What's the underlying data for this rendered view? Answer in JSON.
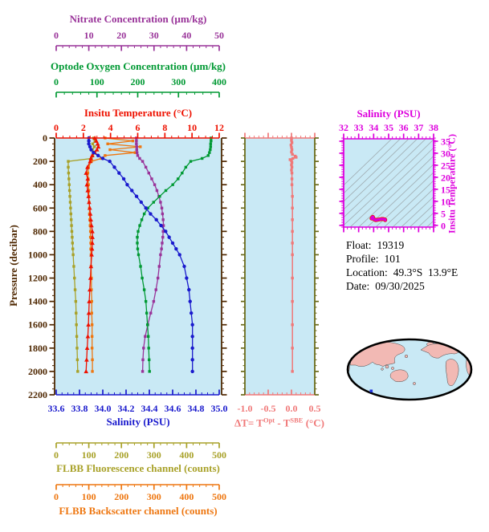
{
  "page": {
    "background": "#ffffff",
    "plot_bg": "#c9e9f5"
  },
  "info_panel": {
    "rows": [
      {
        "label": "Float:",
        "value": "19319"
      },
      {
        "label": "Profile:",
        "value": "101"
      },
      {
        "label": "Location:",
        "value": "49.3°S  13.9°E"
      },
      {
        "label": "Date:",
        "value": "09/30/2025"
      }
    ]
  },
  "axes": {
    "nitrate": {
      "title": "Nitrate Concentration (µm/kg)",
      "color": "#993399",
      "min": 0,
      "max": 50,
      "major_ticks": [
        "0",
        "10",
        "20",
        "30",
        "40",
        "50"
      ],
      "minor_step": 2
    },
    "oxygen": {
      "title": "Optode Oxygen Concentration (µm/kg)",
      "color": "#009933",
      "min": 0,
      "max": 400,
      "major_ticks": [
        "0",
        "100",
        "200",
        "300",
        "400"
      ],
      "minor_step": 20
    },
    "temperature": {
      "title": "Insitu Temperature (°C)",
      "color": "#ee1100",
      "min": 0,
      "max": 12,
      "major_ticks": [
        "0",
        "2",
        "4",
        "6",
        "8",
        "10",
        "12"
      ],
      "minor_step": 0.5
    },
    "pressure": {
      "title": "Pressure (decibar)",
      "color": "#4f2802",
      "min": 0,
      "max": 2200,
      "major_ticks": [
        "0",
        "200",
        "400",
        "600",
        "800",
        "1000",
        "1200",
        "1400",
        "1600",
        "1800",
        "2000",
        "2200"
      ],
      "minor_step": 50
    },
    "salinity": {
      "title": "Salinity (PSU)",
      "color": "#1a1acd",
      "min": 33.6,
      "max": 35.0,
      "major_ticks": [
        "33.6",
        "33.8",
        "34.0",
        "34.2",
        "34.4",
        "34.6",
        "34.8",
        "35.0"
      ],
      "minor_step": 0.05
    },
    "fluorescence": {
      "title": "FLBB Fluorescence channel (counts)",
      "color": "#a8a128",
      "min": 0,
      "max": 500,
      "major_ticks": [
        "0",
        "100",
        "200",
        "300",
        "400",
        "500"
      ],
      "minor_step": 20
    },
    "backscatter": {
      "title": "FLBB Backscatter channel (counts)",
      "color": "#ee7711",
      "min": 0,
      "max": 500,
      "major_ticks": [
        "0",
        "100",
        "200",
        "300",
        "400",
        "500"
      ],
      "minor_step": 20
    },
    "delta_t": {
      "title_parts": {
        "prefix": "ΔT= T",
        "sup1": "Opt",
        "mid": " - T",
        "sup2": "SBE",
        "suffix": " (°C)"
      },
      "color": "#f07878",
      "frame_color": "#6b6b1b",
      "min": -1.0,
      "max": 0.5,
      "major_ticks": [
        "-1.0",
        "-0.5",
        "0.0",
        "0.5"
      ],
      "minor_step": 0.1
    },
    "ts_salinity": {
      "title": "Salinity (PSU)",
      "color": "#dd00dd",
      "min": 32,
      "max": 38,
      "major_ticks": [
        "32",
        "33",
        "34",
        "35",
        "36",
        "37",
        "38"
      ],
      "minor_step": 0.25
    },
    "ts_temperature": {
      "title": "Insitu Temperature (°C)",
      "color": "#dd00dd",
      "min": -0.7,
      "max": 36.0,
      "major_ticks": [
        "0",
        "5",
        "10",
        "15",
        "20",
        "25",
        "30",
        "35"
      ],
      "minor_step": 1
    }
  },
  "chart_data": [
    {
      "type": "line",
      "title": "float-profiles-vs-pressure",
      "ylabel": "Pressure (decibar)",
      "ylim": [
        0,
        2200
      ],
      "legend_position": "none",
      "grid": false,
      "categories_note": "pressure in decibar, each series read on its own top/bottom axis",
      "pressure": [
        0,
        25,
        50,
        75,
        100,
        125,
        150,
        175,
        200,
        250,
        300,
        350,
        400,
        450,
        500,
        550,
        600,
        650,
        700,
        750,
        800,
        850,
        900,
        950,
        1000,
        1100,
        1200,
        1300,
        1400,
        1500,
        1600,
        1700,
        1800,
        1900,
        2000
      ],
      "series": [
        {
          "name": "FLBB Fluorescence channel",
          "axis": "fluorescence",
          "units": "counts",
          "marker": "square",
          "values": [
            115,
            119,
            112,
            117,
            111,
            116,
            112,
            108,
            37,
            37,
            38,
            39,
            40,
            41,
            42,
            43,
            44,
            45,
            46,
            47,
            48,
            49,
            50,
            51,
            52,
            54,
            56,
            58,
            60,
            61,
            62,
            63,
            64,
            65,
            66
          ]
        },
        {
          "name": "FLBB Backscatter channel",
          "axis": "backscatter",
          "units": "counts",
          "marker": "square",
          "values": [
            150,
            235,
            158,
            258,
            165,
            242,
            150,
            138,
            108,
            99,
            97,
            98,
            99,
            100,
            100,
            101,
            102,
            102,
            103,
            104,
            105,
            105,
            106,
            106,
            107,
            107,
            108,
            108,
            109,
            109,
            110,
            110,
            110,
            111,
            111
          ]
        },
        {
          "name": "Insitu Temperature",
          "axis": "temperature",
          "units": "°C",
          "marker": "triangle",
          "values": [
            2.85,
            2.95,
            3.05,
            3.1,
            3.0,
            2.85,
            2.65,
            2.55,
            2.5,
            2.3,
            2.2,
            2.32,
            2.26,
            2.32,
            2.38,
            2.42,
            2.47,
            2.51,
            2.55,
            2.6,
            2.66,
            2.67,
            2.66,
            2.64,
            2.61,
            2.56,
            2.52,
            2.47,
            2.43,
            2.4,
            2.37,
            2.33,
            2.28,
            2.24,
            2.2
          ]
        },
        {
          "name": "Nitrate Concentration",
          "axis": "nitrate",
          "units": "µm/kg",
          "marker": "square",
          "values": [
            24.6,
            24.6,
            24.6,
            24.7,
            24.7,
            24.8,
            25.0,
            25.6,
            26.5,
            27.5,
            28.4,
            29.3,
            30.2,
            30.9,
            31.5,
            32.0,
            32.4,
            32.6,
            32.8,
            32.9,
            32.8,
            32.7,
            32.5,
            32.3,
            32.0,
            31.6,
            31.2,
            30.6,
            29.9,
            29.0,
            28.1,
            27.3,
            26.8,
            26.6,
            26.5
          ]
        },
        {
          "name": "Optode Oxygen Concentration",
          "axis": "oxygen",
          "units": "µm/kg",
          "marker": "square",
          "values": [
            380,
            380,
            379,
            379,
            378,
            376,
            373,
            358,
            330,
            318,
            309,
            299,
            286,
            269,
            254,
            239,
            225,
            216,
            210,
            205,
            201,
            199,
            199,
            200,
            202,
            207,
            211,
            216,
            220,
            222,
            224,
            226,
            227,
            228,
            229
          ]
        },
        {
          "name": "Salinity",
          "axis": "salinity",
          "units": "PSU",
          "marker": "circle",
          "values": [
            33.88,
            33.88,
            33.88,
            33.89,
            33.9,
            33.92,
            33.96,
            34.0,
            34.06,
            34.1,
            34.14,
            34.18,
            34.21,
            34.25,
            34.29,
            34.33,
            34.37,
            34.41,
            34.46,
            34.5,
            34.54,
            34.57,
            34.6,
            34.63,
            34.66,
            34.7,
            34.72,
            34.74,
            34.75,
            34.76,
            34.77,
            34.77,
            34.77,
            34.77,
            34.77
          ]
        }
      ]
    },
    {
      "type": "line",
      "title": "optode-minus-sbe-temperature-difference",
      "xlabel": "ΔT= TOpt - TSBE (°C)",
      "xlim": [
        -1.0,
        0.5
      ],
      "ylim": [
        0,
        2200
      ],
      "series": [
        {
          "name": "ΔT",
          "axis": "delta_t",
          "units": "°C",
          "marker": "square",
          "pressure": [
            0,
            20,
            40,
            60,
            80,
            100,
            120,
            140,
            155,
            165,
            175,
            185,
            195,
            210,
            230,
            250,
            275,
            300,
            350,
            400,
            500,
            600,
            700,
            800,
            900,
            1000,
            1200,
            1400,
            1600,
            1800,
            2000
          ],
          "values": [
            0.0,
            0.0,
            0.01,
            -0.01,
            0.0,
            0.01,
            0.0,
            0.02,
            0.08,
            0.1,
            0.03,
            -0.03,
            0.0,
            0.01,
            0.0,
            0.01,
            0.0,
            0.01,
            0.01,
            0.01,
            0.02,
            0.02,
            0.02,
            0.02,
            0.02,
            0.02,
            0.02,
            0.02,
            0.02,
            0.02,
            0.02
          ]
        }
      ]
    },
    {
      "type": "scatter",
      "title": "ts-diagram",
      "xlabel": "Salinity (PSU)",
      "ylabel": "Insitu Temperature (°C)",
      "xlim": [
        32,
        38
      ],
      "ylim": [
        0,
        35
      ],
      "contours": {
        "kind": "isopycnal",
        "count": 20,
        "color": "#9fabb0"
      },
      "points_salinity_temperature": [
        [
          33.86,
          2.85
        ],
        [
          33.88,
          2.95
        ],
        [
          33.9,
          3.05
        ],
        [
          33.92,
          3.1
        ],
        [
          33.9,
          3.3
        ],
        [
          33.94,
          3.55
        ],
        [
          33.96,
          3.4
        ],
        [
          33.96,
          2.9
        ],
        [
          34.0,
          2.6
        ],
        [
          34.06,
          2.5
        ],
        [
          34.1,
          2.3
        ],
        [
          34.14,
          2.2
        ],
        [
          34.18,
          2.32
        ],
        [
          34.21,
          2.26
        ],
        [
          34.29,
          2.38
        ],
        [
          34.37,
          2.47
        ],
        [
          34.46,
          2.55
        ],
        [
          34.54,
          2.66
        ],
        [
          34.6,
          2.66
        ],
        [
          34.66,
          2.61
        ],
        [
          34.72,
          2.52
        ],
        [
          34.75,
          2.43
        ],
        [
          34.77,
          2.37
        ],
        [
          34.77,
          2.28
        ],
        [
          34.77,
          2.2
        ]
      ],
      "point_color": "#dd00dd",
      "outline_color": "#ee1100"
    }
  ],
  "map": {
    "ocean_color": "#c9e9f5",
    "land_color": "#f2b9b4",
    "outline_color": "#000000",
    "marker_color": "#2233dd"
  }
}
